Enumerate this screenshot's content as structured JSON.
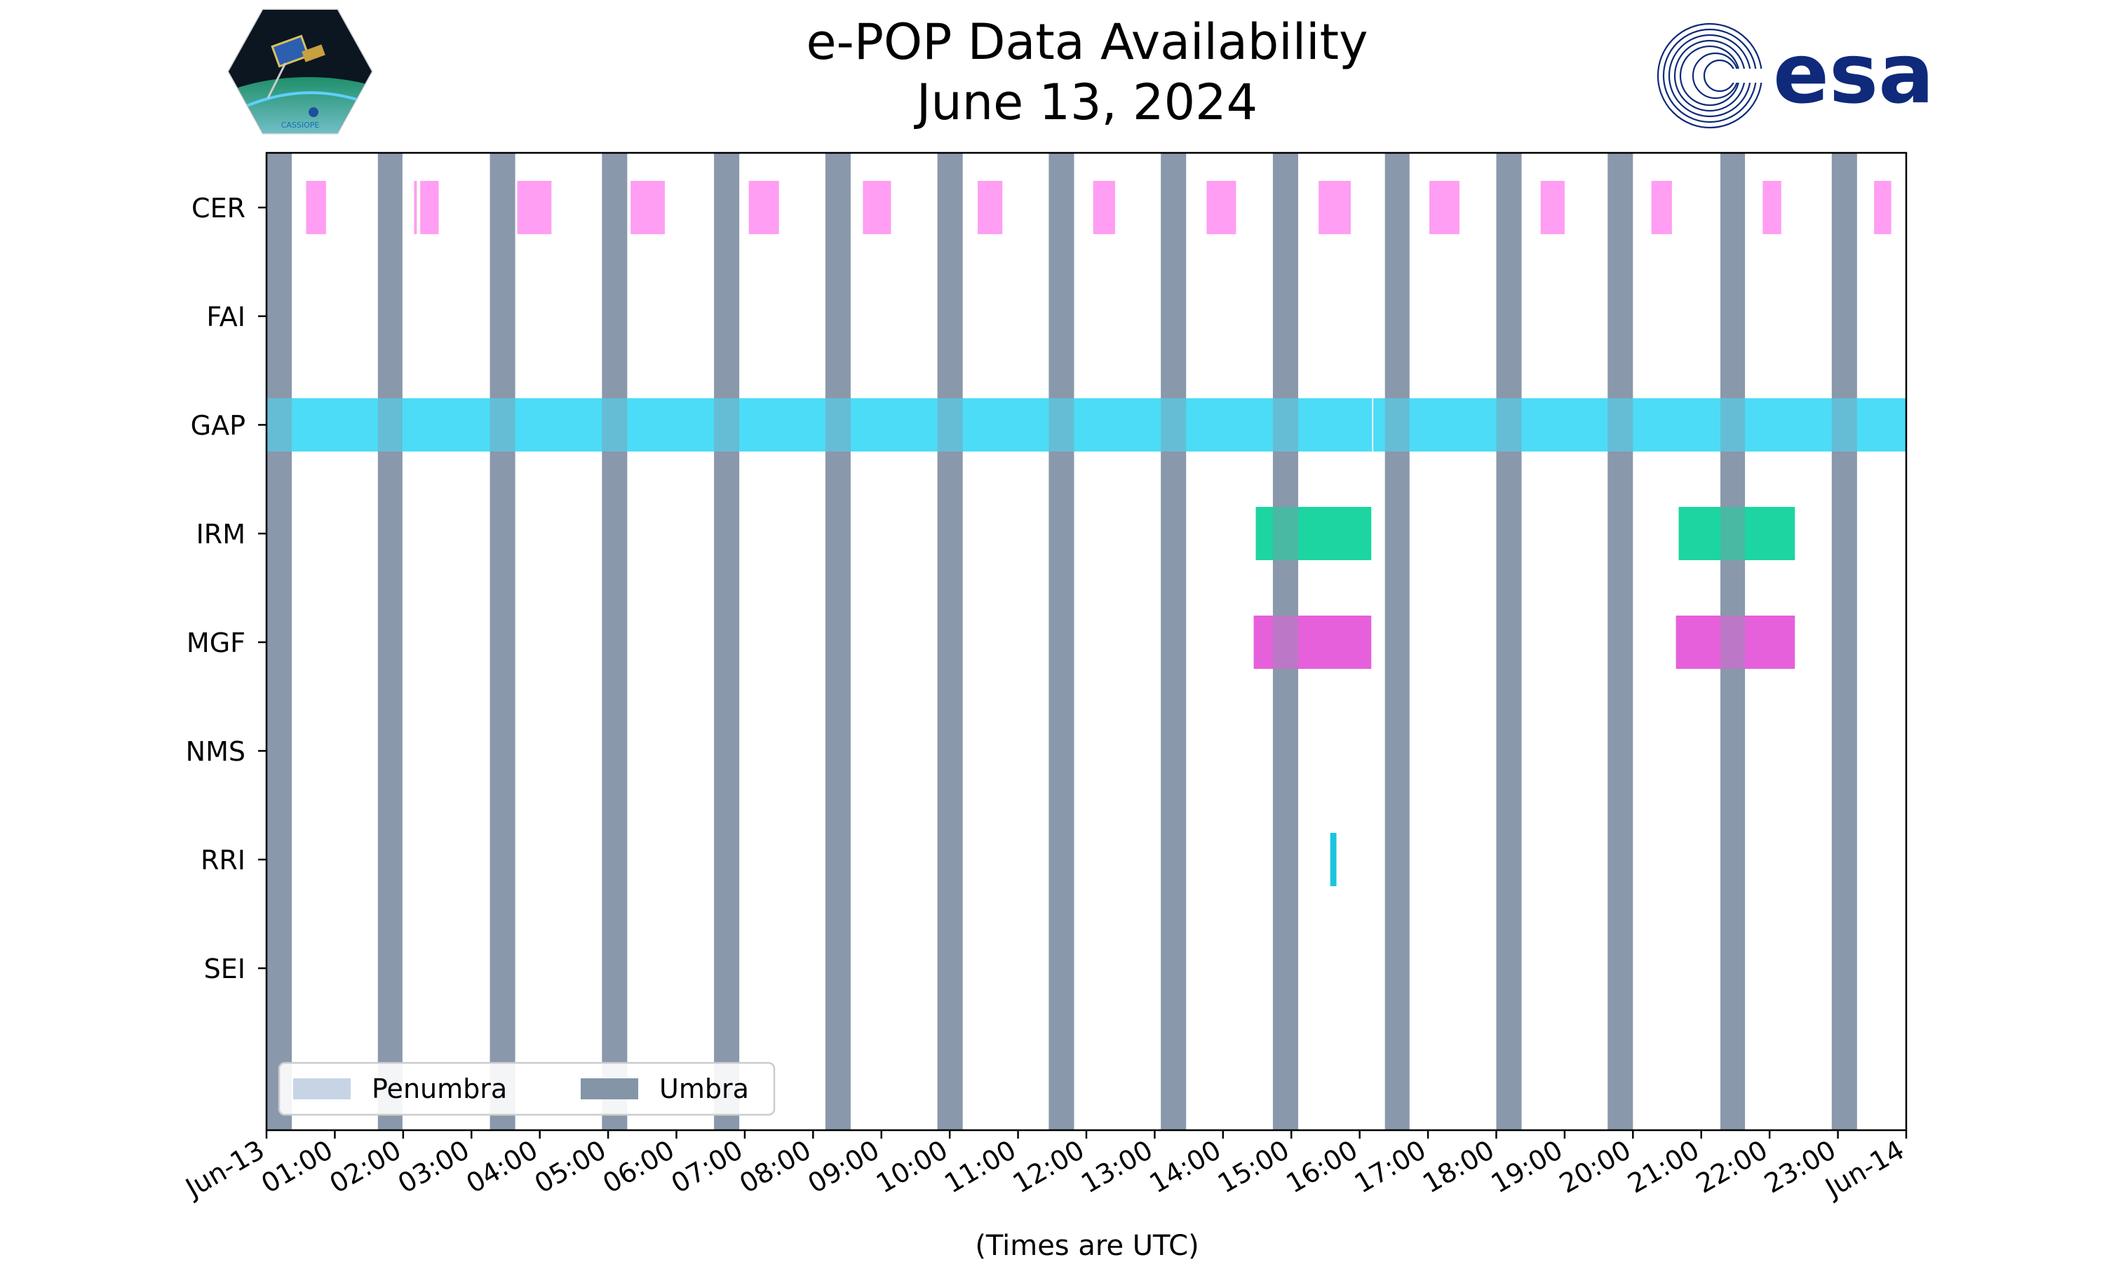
{
  "chart_data": {
    "type": "timeline",
    "title": "e-POP Data Availability",
    "subtitle": "June 13, 2024",
    "xlabel": "(Times are UTC)",
    "ylabel": "",
    "xlim": [
      0,
      24
    ],
    "x_units": "hours UTC on June 13, 2024",
    "x_tick_values": [
      0,
      1,
      2,
      3,
      4,
      5,
      6,
      7,
      8,
      9,
      10,
      11,
      12,
      13,
      14,
      15,
      16,
      17,
      18,
      19,
      20,
      21,
      22,
      23,
      24
    ],
    "x_tick_labels": [
      "Jun-13",
      "01:00",
      "02:00",
      "03:00",
      "04:00",
      "05:00",
      "06:00",
      "07:00",
      "08:00",
      "09:00",
      "10:00",
      "11:00",
      "12:00",
      "13:00",
      "14:00",
      "15:00",
      "16:00",
      "17:00",
      "18:00",
      "19:00",
      "20:00",
      "21:00",
      "22:00",
      "23:00",
      "Jun-14"
    ],
    "categories": [
      "CER",
      "FAI",
      "GAP",
      "IRM",
      "MGF",
      "NMS",
      "RRI",
      "SEI"
    ],
    "legend": {
      "position": "lower-left",
      "entries": [
        {
          "label": "Penumbra",
          "color": "#c7d4e6"
        },
        {
          "label": "Umbra",
          "color": "#8595a8"
        }
      ]
    },
    "umbra_intervals": [
      [
        0.0,
        0.37
      ],
      [
        1.63,
        1.99
      ],
      [
        3.27,
        3.64
      ],
      [
        4.91,
        5.28
      ],
      [
        6.55,
        6.92
      ],
      [
        8.18,
        8.55
      ],
      [
        9.82,
        10.19
      ],
      [
        11.45,
        11.82
      ],
      [
        13.09,
        13.46
      ],
      [
        14.73,
        15.1
      ],
      [
        16.37,
        16.73
      ],
      [
        18.0,
        18.37
      ],
      [
        19.63,
        20.0
      ],
      [
        21.28,
        21.64
      ],
      [
        22.91,
        23.28
      ]
    ],
    "penumbra_intervals": [],
    "series": [
      {
        "name": "CER",
        "color": "#ff9ef2",
        "intervals": [
          [
            0.58,
            0.87
          ],
          [
            2.16,
            2.2
          ],
          [
            2.25,
            2.52
          ],
          [
            3.67,
            4.17
          ],
          [
            5.33,
            5.83
          ],
          [
            7.06,
            7.5
          ],
          [
            8.73,
            9.14
          ],
          [
            10.41,
            10.77
          ],
          [
            12.1,
            12.42
          ],
          [
            13.76,
            14.19
          ],
          [
            15.4,
            15.87
          ],
          [
            17.02,
            17.46
          ],
          [
            18.65,
            19.0
          ],
          [
            20.27,
            20.57
          ],
          [
            21.9,
            22.17
          ],
          [
            23.53,
            23.78
          ]
        ]
      },
      {
        "name": "FAI",
        "color": "#888888",
        "intervals": []
      },
      {
        "name": "GAP",
        "color": "#4ddcf7",
        "intervals": [
          [
            0.0,
            16.18
          ],
          [
            16.2,
            24.0
          ]
        ]
      },
      {
        "name": "IRM",
        "color": "#1dd5a1",
        "intervals": [
          [
            14.48,
            16.17
          ],
          [
            20.67,
            22.37
          ]
        ]
      },
      {
        "name": "MGF",
        "color": "#e660dc",
        "intervals": [
          [
            14.45,
            16.17
          ],
          [
            20.63,
            22.37
          ]
        ]
      },
      {
        "name": "NMS",
        "color": "#888888",
        "intervals": []
      },
      {
        "name": "RRI",
        "color": "#1bc4de",
        "intervals": [
          [
            15.57,
            15.66
          ]
        ]
      },
      {
        "name": "SEI",
        "color": "#888888",
        "intervals": []
      }
    ]
  },
  "logos": {
    "left": {
      "name": "CASSIOPE mission badge",
      "text": "CASSIOPE"
    },
    "right": {
      "name": "ESA logo",
      "text": "esa",
      "color": "#0f2a7a"
    }
  }
}
